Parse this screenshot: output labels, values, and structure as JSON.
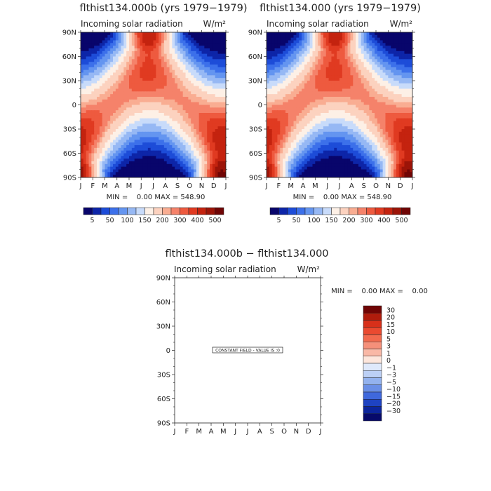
{
  "chart_data": [
    {
      "type": "heatmap",
      "title": "flthist134.000b (yrs 1979−1979)",
      "subtitle": "Incoming solar radiation",
      "units": "W/m²",
      "x_tick_labels": [
        "J",
        "F",
        "M",
        "A",
        "M",
        "J",
        "J",
        "A",
        "S",
        "O",
        "N",
        "D",
        "J"
      ],
      "y_tick_labels": [
        "90N",
        "60N",
        "30N",
        "0",
        "30S",
        "60S",
        "90S"
      ],
      "ylim": [
        -90,
        90
      ],
      "stats": "MIN =    0.00 MAX = 548.90",
      "min": 0.0,
      "max": 548.9,
      "colorbar_labels": [
        "5",
        "50",
        "100",
        "150",
        "200",
        "300",
        "400",
        "500"
      ],
      "colorbar_colors": [
        "#08056b",
        "#0d25a8",
        "#1d4cd8",
        "#3c70ea",
        "#6495f0",
        "#96b8f4",
        "#c8dbfa",
        "#fdf0e6",
        "#fcd2bf",
        "#f9ad92",
        "#f5826a",
        "#ee5a3f",
        "#e03a21",
        "#c4230f",
        "#9c1408",
        "#700505"
      ],
      "grid": false
    },
    {
      "type": "heatmap",
      "title": "flthist134.000 (yrs 1979−1979)",
      "subtitle": "Incoming solar radiation",
      "units": "W/m²",
      "x_tick_labels": [
        "J",
        "F",
        "M",
        "A",
        "M",
        "J",
        "J",
        "A",
        "S",
        "O",
        "N",
        "D",
        "J"
      ],
      "y_tick_labels": [
        "90N",
        "60N",
        "30N",
        "0",
        "30S",
        "60S",
        "90S"
      ],
      "ylim": [
        -90,
        90
      ],
      "stats": "MIN =    0.00 MAX = 548.90",
      "min": 0.0,
      "max": 548.9,
      "colorbar_labels": [
        "5",
        "50",
        "100",
        "150",
        "200",
        "300",
        "400",
        "500"
      ],
      "colorbar_colors": [
        "#08056b",
        "#0d25a8",
        "#1d4cd8",
        "#3c70ea",
        "#6495f0",
        "#96b8f4",
        "#c8dbfa",
        "#fdf0e6",
        "#fcd2bf",
        "#f9ad92",
        "#f5826a",
        "#ee5a3f",
        "#e03a21",
        "#c4230f",
        "#9c1408",
        "#700505"
      ],
      "grid": false
    },
    {
      "type": "heatmap",
      "title": "flthist134.000b − flthist134.000",
      "subtitle": "Incoming solar radiation",
      "units": "W/m²",
      "x_tick_labels": [
        "J",
        "F",
        "M",
        "A",
        "M",
        "J",
        "J",
        "A",
        "S",
        "O",
        "N",
        "D",
        "J"
      ],
      "y_tick_labels": [
        "90N",
        "60N",
        "30N",
        "0",
        "30S",
        "60S",
        "90S"
      ],
      "ylim": [
        -90,
        90
      ],
      "stats": "MIN =    0.00 MAX =    0.00",
      "min": 0.0,
      "max": 0.0,
      "annotation": "CONSTANT FIELD - VALUE IS :0",
      "colorbar_labels": [
        "30",
        "20",
        "15",
        "10",
        "5",
        "3",
        "1",
        "0",
        "−1",
        "−3",
        "−5",
        "−10",
        "−15",
        "−20",
        "−30"
      ],
      "colorbar_colors": [
        "#700505",
        "#b01c0c",
        "#d8301a",
        "#ea4a30",
        "#f26a4e",
        "#f5907a",
        "#f9b8a6",
        "#fde6dc",
        "#dfe9fb",
        "#bcd0f5",
        "#93b2ee",
        "#6a8fe6",
        "#3f68dc",
        "#1e43c2",
        "#0c259c",
        "#070a6a"
      ],
      "grid": false
    }
  ]
}
